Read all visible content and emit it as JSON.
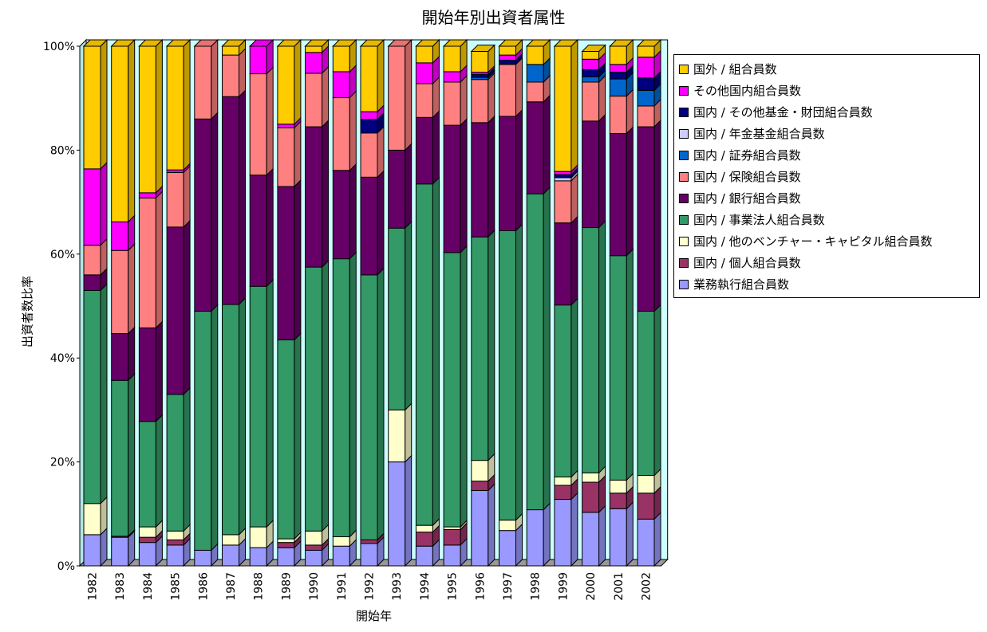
{
  "chart_data": {
    "type": "bar",
    "stacked": true,
    "percent": true,
    "title": "開始年別出資者属性",
    "xlabel": "開始年",
    "ylabel": "出資者数比率",
    "ylim": [
      0,
      100
    ],
    "yticks": [
      "0%",
      "20%",
      "40%",
      "60%",
      "80%",
      "100%"
    ],
    "grid": false,
    "legend_position": "right",
    "categories": [
      "1982",
      "1983",
      "1984",
      "1985",
      "1986",
      "1987",
      "1988",
      "1989",
      "1990",
      "1991",
      "1992",
      "1993",
      "1994",
      "1995",
      "1996",
      "1997",
      "1998",
      "1999",
      "2000",
      "2001",
      "2002"
    ],
    "series": [
      {
        "name": "業務執行組合員数",
        "color": "#9999ff",
        "values": [
          6,
          5.5,
          4.5,
          4,
          3,
          4,
          3.5,
          3.5,
          3,
          3.8,
          4.3,
          20,
          3.8,
          4,
          14.5,
          6.8,
          10.8,
          12.8,
          10.3,
          11,
          9
        ]
      },
      {
        "name": "国内 / 個人組合員数",
        "color": "#993366",
        "values": [
          0,
          0.2,
          1,
          1,
          0,
          0,
          0,
          1,
          1,
          0,
          0.7,
          0,
          2.7,
          3,
          1.8,
          0,
          0,
          2.7,
          5.8,
          3,
          5
        ]
      },
      {
        "name": "国内 / 他のベンチャー・キャピタル組合員数",
        "color": "#ffffcc",
        "values": [
          6,
          0,
          2,
          1.7,
          0,
          2,
          4,
          0.7,
          2.7,
          1.8,
          0,
          10,
          1.3,
          0.5,
          4,
          2,
          0,
          1.6,
          1.8,
          2.5,
          3.4
        ]
      },
      {
        "name": "国内 / 事業法人組合員数",
        "color": "#339966",
        "values": [
          41,
          30,
          20.3,
          26.3,
          46,
          44.3,
          46.3,
          38.3,
          50.8,
          53.5,
          51,
          35,
          65.7,
          52.8,
          43,
          55.7,
          60.8,
          33.1,
          47.2,
          43.2,
          31.6
        ]
      },
      {
        "name": "国内 / 銀行組合員数",
        "color": "#660066",
        "values": [
          3,
          9,
          18,
          32.2,
          37,
          40,
          21.4,
          29.5,
          27,
          17,
          18.8,
          15,
          12.8,
          24.5,
          22,
          22,
          17.7,
          15.8,
          20.5,
          23.5,
          35.5
        ]
      },
      {
        "name": "国内 / 保険組合員数",
        "color": "#ff8080",
        "values": [
          5.7,
          16,
          25,
          10.5,
          14,
          8,
          19.5,
          11.3,
          10.3,
          14,
          8.5,
          20,
          6.5,
          8.3,
          8.3,
          10,
          3.8,
          8.1,
          7.5,
          7.2,
          4
        ]
      },
      {
        "name": "国内 / 証券組合員数",
        "color": "#0066cc",
        "values": [
          0,
          0,
          0,
          0,
          0,
          0,
          0,
          0,
          0,
          0,
          0,
          0,
          0,
          0,
          0.4,
          0,
          3.4,
          0,
          1,
          3.3,
          3
        ]
      },
      {
        "name": "国内 / 年金基金組合員数",
        "color": "#ccccff",
        "values": [
          0,
          0,
          0,
          0,
          0,
          0,
          0,
          0,
          0,
          0,
          0,
          0,
          0,
          0,
          0,
          0,
          0,
          0.6,
          0,
          0,
          0
        ]
      },
      {
        "name": "国内 / その他基金・財団組合員数",
        "color": "#000080",
        "values": [
          0,
          0,
          0,
          0,
          0,
          0,
          0,
          0,
          0,
          0,
          2.6,
          0,
          0,
          0,
          0.6,
          0.8,
          0,
          0.6,
          1.4,
          1.3,
          2.4
        ]
      },
      {
        "name": "その他国内組合員数",
        "color": "#ff00ff",
        "values": [
          14.7,
          5.5,
          1,
          0.5,
          0,
          0,
          5.3,
          0.7,
          4,
          5,
          1.5,
          0,
          4,
          2,
          0.4,
          1,
          0,
          0.6,
          2,
          1.5,
          4
        ]
      },
      {
        "name": "国外 / 組合員数",
        "color": "#ffcc00",
        "values": [
          23.6,
          33.8,
          28.2,
          23.8,
          0,
          1.7,
          0,
          15,
          1.2,
          4.9,
          12.6,
          0,
          3.2,
          4.9,
          4,
          1.7,
          3.5,
          24.1,
          1.5,
          3.5,
          2.1
        ]
      }
    ]
  }
}
